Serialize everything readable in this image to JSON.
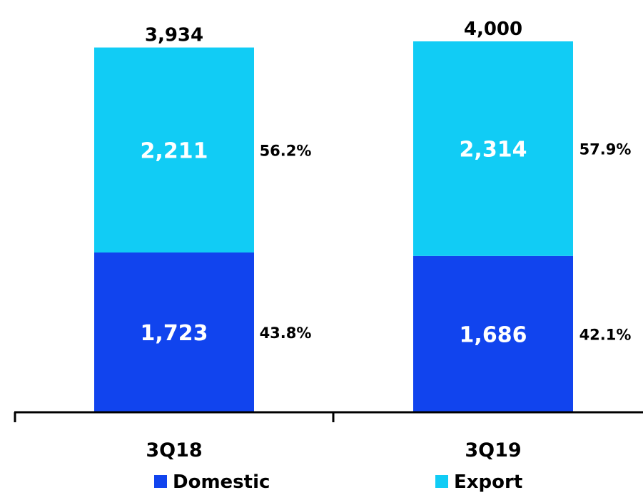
{
  "chart_data": {
    "type": "bar",
    "stacked": true,
    "categories": [
      "3Q18",
      "3Q19"
    ],
    "series": [
      {
        "name": "Domestic",
        "values": [
          1723,
          1686
        ],
        "labels": [
          "1,723",
          "1,686"
        ],
        "shares": [
          "43.8%",
          "42.1%"
        ],
        "color": "#1144ee"
      },
      {
        "name": "Export",
        "values": [
          2211,
          2314
        ],
        "labels": [
          "2,211",
          "2,314"
        ],
        "shares": [
          "56.2%",
          "57.9%"
        ],
        "color": "#11ccf5"
      }
    ],
    "totals": [
      "3,934",
      "4,000"
    ],
    "legend": "bottom",
    "grid": false
  }
}
